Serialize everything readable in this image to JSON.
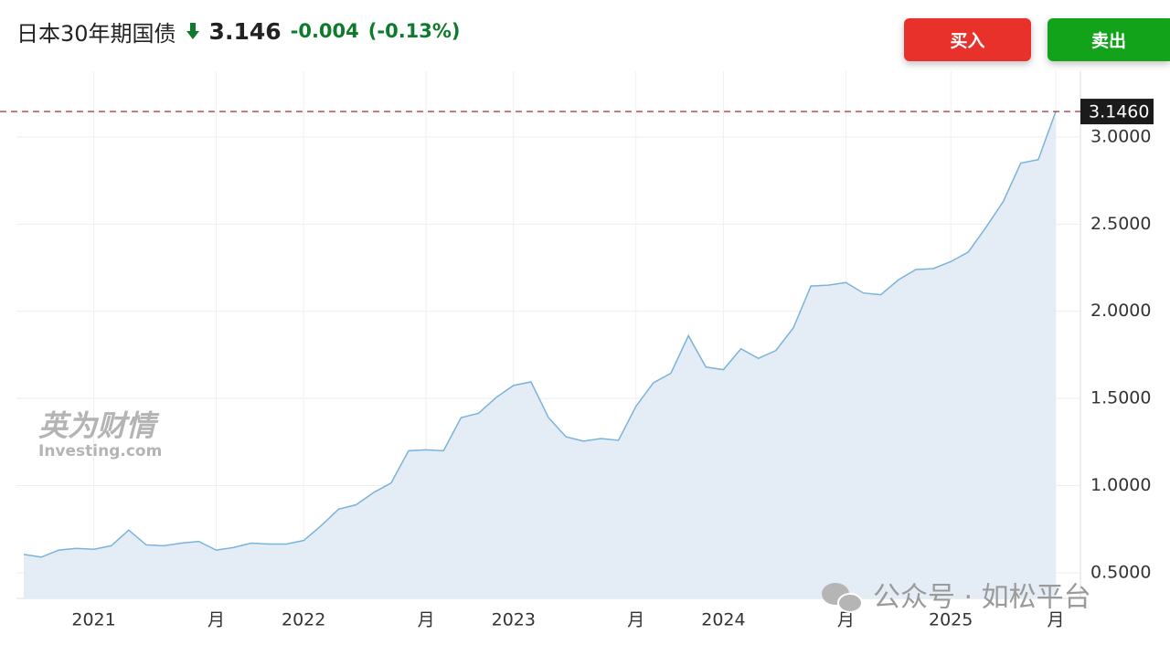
{
  "header": {
    "title": "日本30年期国债",
    "price": "3.146",
    "change": "-0.004",
    "change_pct": "(-0.13%)",
    "buy": "买入",
    "sell": "卖出"
  },
  "watermark": {
    "logo": "英为财情",
    "site": "Investing.com",
    "wechat": "公众号 · 如松平台"
  },
  "chart_data": {
    "type": "area",
    "categories": [
      null,
      null,
      null,
      null,
      "2021",
      null,
      null,
      null,
      null,
      null,
      null,
      "月",
      null,
      null,
      null,
      null,
      "2022",
      null,
      null,
      null,
      null,
      null,
      null,
      "月",
      null,
      null,
      null,
      null,
      "2023",
      null,
      null,
      null,
      null,
      null,
      null,
      "月",
      null,
      null,
      null,
      null,
      "2024",
      null,
      null,
      null,
      null,
      null,
      null,
      "月",
      null,
      null,
      null,
      null,
      null,
      "2025",
      null,
      null,
      null,
      null,
      null,
      "月"
    ],
    "values": [
      0.605,
      0.59,
      0.63,
      0.64,
      0.635,
      0.655,
      0.745,
      0.66,
      0.655,
      0.67,
      0.68,
      0.63,
      0.645,
      0.67,
      0.665,
      0.665,
      0.685,
      0.77,
      0.865,
      0.89,
      0.96,
      1.015,
      1.2,
      1.205,
      1.2,
      1.39,
      1.415,
      1.505,
      1.575,
      1.595,
      1.39,
      1.28,
      1.255,
      1.27,
      1.26,
      1.455,
      1.59,
      1.645,
      1.86,
      1.68,
      1.665,
      1.785,
      1.73,
      1.775,
      1.905,
      2.145,
      2.15,
      2.165,
      2.105,
      2.095,
      2.18,
      2.24,
      2.245,
      2.285,
      2.34,
      2.48,
      2.63,
      2.85,
      2.87,
      3.146
    ],
    "color": "#7ab3db",
    "fill_color": "#e4edf6",
    "ylim": [
      0.353,
      3.377
    ],
    "yticks": [
      {
        "value": 0.5,
        "label": "0.5000"
      },
      {
        "value": 1,
        "label": "1.0000"
      },
      {
        "value": 1.5,
        "label": "1.5000"
      },
      {
        "value": 2,
        "label": "2.0000"
      },
      {
        "value": 2.5,
        "label": "2.5000"
      },
      {
        "value": 3,
        "label": "3.0000"
      }
    ],
    "price_line": {
      "value": 3.146,
      "label": "3.1460",
      "color": "#a01818"
    },
    "grid": true
  }
}
